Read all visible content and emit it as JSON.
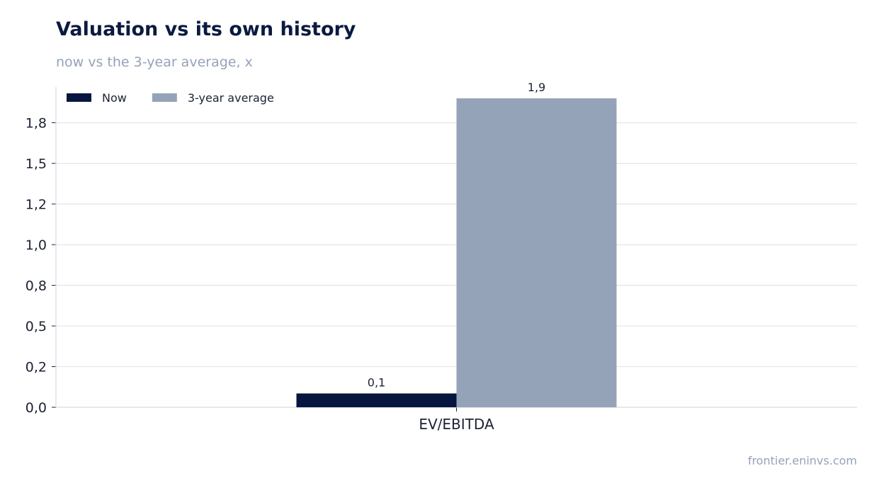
{
  "header": {
    "title": "Valuation vs its own history",
    "subtitle": "now vs the 3-year average, x"
  },
  "footer": {
    "source": "frontier.eninvs.com"
  },
  "colors": {
    "now": "#07163f",
    "avg": "#94a3b8",
    "grid": "#e2e6ef",
    "axis": "#d8dde8"
  },
  "chart_data": {
    "type": "bar",
    "categories": [
      "EV/EBITDA"
    ],
    "series": [
      {
        "name": "Now",
        "values": [
          0.085
        ],
        "label": "0,1",
        "color": "#07163f"
      },
      {
        "name": "3-year average",
        "values": [
          1.9
        ],
        "label": "1,9",
        "color": "#94a3b8"
      }
    ],
    "ylim": [
      0,
      1.97
    ],
    "yticks": [
      0.0,
      0.25,
      0.5,
      0.75,
      1.0,
      1.25,
      1.5,
      1.75
    ],
    "ytick_labels": [
      "0,0",
      "0,2",
      "0,5",
      "0,8",
      "1,0",
      "1,2",
      "1,5",
      "1,8"
    ],
    "legend_placement": "top-left",
    "grid": true
  }
}
